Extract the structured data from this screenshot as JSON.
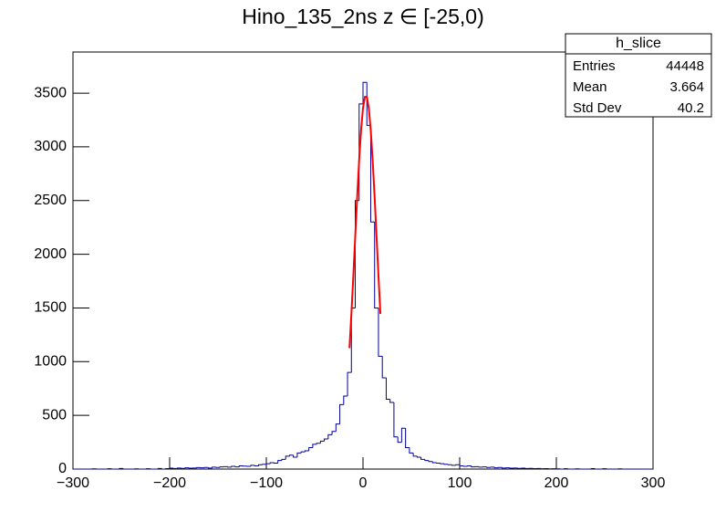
{
  "chart_data": {
    "type": "histogram",
    "title": "Hino_135_2ns z  ∈ [-25,0)",
    "color": "#000099",
    "bins": [
      -300,
      -296,
      -292,
      -288,
      -284,
      -280,
      -276,
      -272,
      -268,
      -264,
      -260,
      -256,
      -252,
      -248,
      -244,
      -240,
      -236,
      -232,
      -228,
      -224,
      -220,
      -216,
      -212,
      -208,
      -204,
      -200,
      -196,
      -192,
      -188,
      -184,
      -180,
      -176,
      -172,
      -168,
      -164,
      -160,
      -156,
      -152,
      -148,
      -144,
      -140,
      -136,
      -132,
      -128,
      -124,
      -120,
      -116,
      -112,
      -108,
      -104,
      -100,
      -96,
      -92,
      -88,
      -84,
      -80,
      -76,
      -72,
      -68,
      -64,
      -60,
      -56,
      -52,
      -48,
      -44,
      -40,
      -36,
      -32,
      -28,
      -24,
      -20,
      -16,
      -12,
      -8,
      -4,
      0,
      4,
      8,
      12,
      16,
      20,
      24,
      28,
      32,
      36,
      40,
      44,
      48,
      52,
      56,
      60,
      64,
      68,
      72,
      76,
      80,
      84,
      88,
      92,
      96,
      100,
      104,
      108,
      112,
      116,
      120,
      124,
      128,
      132,
      136,
      140,
      144,
      148,
      152,
      156,
      160,
      164,
      168,
      172,
      176,
      180,
      184,
      188,
      192,
      196,
      200,
      204,
      208,
      212,
      216,
      220,
      224,
      228,
      232,
      236,
      240,
      244,
      248,
      252,
      256,
      260,
      264,
      268,
      272,
      276,
      280,
      284,
      288,
      292,
      296,
      300
    ],
    "values": [
      0,
      0,
      0,
      0,
      0,
      2,
      0,
      0,
      0,
      3,
      0,
      0,
      5,
      0,
      0,
      0,
      2,
      0,
      0,
      3,
      0,
      0,
      5,
      0,
      4,
      8,
      5,
      10,
      6,
      12,
      8,
      10,
      14,
      12,
      15,
      10,
      18,
      15,
      20,
      22,
      18,
      25,
      20,
      30,
      28,
      25,
      35,
      30,
      40,
      45,
      50,
      60,
      55,
      80,
      90,
      120,
      130,
      110,
      150,
      160,
      170,
      200,
      230,
      240,
      260,
      280,
      320,
      350,
      420,
      600,
      680,
      900,
      1500,
      2500,
      3400,
      3600,
      3200,
      2300,
      1500,
      1050,
      850,
      650,
      620,
      300,
      250,
      380,
      200,
      150,
      120,
      110,
      90,
      80,
      70,
      60,
      55,
      50,
      45,
      40,
      35,
      40,
      30,
      25,
      30,
      20,
      22,
      18,
      20,
      15,
      18,
      12,
      15,
      10,
      12,
      8,
      10,
      6,
      8,
      5,
      6,
      4,
      5,
      3,
      4,
      2,
      3,
      2,
      0,
      3,
      0,
      0,
      2,
      0,
      0,
      0,
      4,
      0,
      0,
      3,
      0,
      0,
      0,
      2,
      0,
      0,
      0,
      0,
      0,
      0,
      0,
      0
    ],
    "fit": {
      "color": "#ff0000",
      "x": [
        -14,
        -12,
        -10,
        -8,
        -6,
        -4,
        -2,
        0,
        2,
        4,
        6,
        8,
        10,
        12,
        14,
        16,
        18
      ],
      "values": [
        1125,
        1445,
        1798,
        2169,
        2537,
        2874,
        3156,
        3360,
        3466,
        3466,
        3360,
        3156,
        2874,
        2537,
        2169,
        1798,
        1445
      ]
    },
    "xlim": [
      -300,
      300
    ],
    "xticks": [
      {
        "value": -300,
        "label": "−300"
      },
      {
        "value": -200,
        "label": "−200"
      },
      {
        "value": -100,
        "label": "−100"
      },
      0,
      100,
      200,
      300
    ],
    "ylim": [
      0,
      3883
    ],
    "yticks": [
      0,
      500,
      1000,
      1500,
      2000,
      2500,
      3000,
      3500
    ],
    "stats": {
      "title": "h_slice",
      "rows": [
        {
          "label": "Entries",
          "value": 44448
        },
        {
          "label": "Mean",
          "value": 3.664
        },
        {
          "label": "Std Dev",
          "value": 40.2
        }
      ]
    }
  }
}
